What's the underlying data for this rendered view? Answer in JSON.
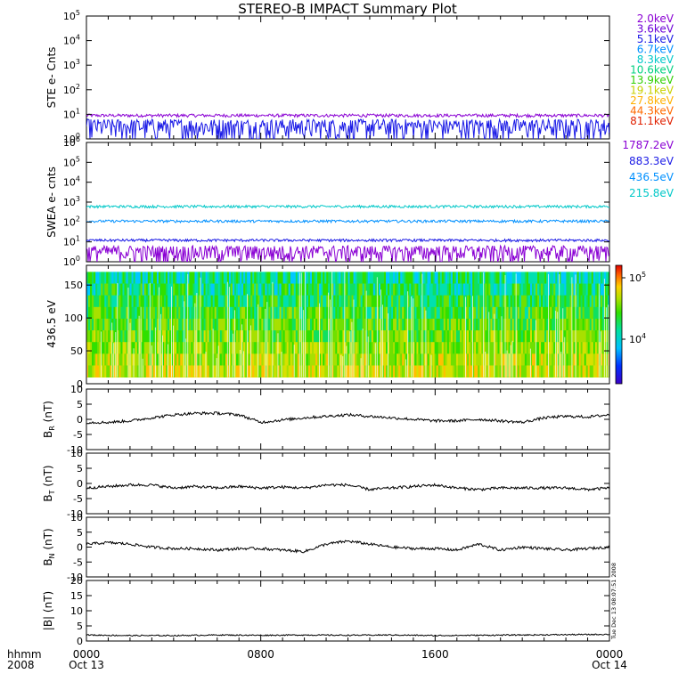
{
  "title": "STEREO-B IMPACT Summary Plot",
  "time_axis": {
    "corner_label_1": "hhmm",
    "corner_label_2": "2008",
    "ticks": [
      {
        "label": "0000",
        "sublabel": "Oct 13",
        "hour": 0
      },
      {
        "label": "0800",
        "sublabel": "",
        "hour": 8
      },
      {
        "label": "1600",
        "sublabel": "",
        "hour": 16
      },
      {
        "label": "0000",
        "sublabel": "Oct 14",
        "hour": 24
      }
    ],
    "range_hours": [
      0,
      24
    ]
  },
  "side_stamp": "Tue Dec 13 08:07:51 2008",
  "colors": {
    "ste_2.0keV": "#8a00d4",
    "ste_3.6keV": "#6a00d8",
    "ste_5.1keV": "#1a1ae6",
    "ste_6.7keV": "#0090ff",
    "ste_8.3keV": "#00c8c8",
    "ste_10.6keV": "#00d080",
    "ste_13.9keV": "#30d000",
    "ste_19.1keV": "#c8d000",
    "ste_27.8keV": "#ffb000",
    "ste_44.3keV": "#ff6a00",
    "ste_81.1keV": "#e02000",
    "swea_1787.2eV": "#8a00d4",
    "swea_883.3eV": "#1a1ae6",
    "swea_436.5eV": "#0090ff",
    "swea_215.8eV": "#00c8c8"
  },
  "ste_legend": [
    "2.0keV",
    "3.6keV",
    "5.1keV",
    "6.7keV",
    "8.3keV",
    "10.6keV",
    "13.9keV",
    "19.1keV",
    "27.8keV",
    "44.3keV",
    "81.1keV"
  ],
  "swea_legend": [
    "1787.2eV",
    "883.3eV",
    "436.5eV",
    "215.8eV"
  ],
  "chart_data": [
    {
      "type": "line",
      "panel": "ste",
      "ylabel": "STE e- Cnts",
      "yscale": "log",
      "ylim": [
        1,
        100000
      ],
      "yticks": [
        "10^0",
        "10^1",
        "10^2",
        "10^3",
        "10^4",
        "10^5"
      ],
      "series": [
        {
          "name": "2.0keV",
          "approx_level": 9
        },
        {
          "name": "5.1keV",
          "approx_level": 1.2
        }
      ]
    },
    {
      "type": "line",
      "panel": "swea",
      "ylabel": "SWEA e- cnts",
      "yscale": "log",
      "ylim": [
        1,
        1000000
      ],
      "yticks": [
        "10^0",
        "10^1",
        "10^2",
        "10^3",
        "10^4",
        "10^5",
        "10^6"
      ],
      "series": [
        {
          "name": "215.8eV",
          "approx_level": 600
        },
        {
          "name": "436.5eV",
          "approx_level": 110
        },
        {
          "name": "883.3eV",
          "approx_level": 12
        },
        {
          "name": "1787.2eV",
          "approx_level": 2
        }
      ]
    },
    {
      "type": "heatmap",
      "panel": "pad",
      "ylabel": "436.5 eV",
      "ylim": [
        0,
        180
      ],
      "yticks": [
        "0",
        "50",
        "100",
        "150"
      ],
      "colorbar": {
        "scale": "log",
        "ticks": [
          "10^5",
          "10^4"
        ]
      }
    },
    {
      "type": "line",
      "panel": "br",
      "ylabel": "B_R (nT)",
      "ylabel_main": "B",
      "ylabel_sub": "R",
      "ylabel_unit": " (nT)",
      "ylim": [
        -10,
        10
      ],
      "yticks": [
        "-10",
        "-5",
        "0",
        "5",
        "10"
      ],
      "x": [
        0,
        1,
        2,
        3,
        4,
        5,
        6,
        7,
        8,
        9,
        10,
        11,
        12,
        13,
        14,
        15,
        16,
        17,
        18,
        19,
        20,
        21,
        22,
        23,
        24
      ],
      "values": [
        -1,
        -1,
        -0.5,
        0.5,
        1.5,
        2,
        2,
        1.5,
        -1,
        -0.2,
        0.5,
        1,
        1.5,
        1,
        0.5,
        0,
        -0.5,
        -0.5,
        0,
        -0.5,
        -1,
        0.5,
        1,
        0.8,
        1.5
      ]
    },
    {
      "type": "line",
      "panel": "bt",
      "ylabel": "B_T (nT)",
      "ylabel_main": "B",
      "ylabel_sub": "T",
      "ylabel_unit": " (nT)",
      "ylim": [
        -10,
        10
      ],
      "yticks": [
        "-10",
        "-5",
        "0",
        "5",
        "10"
      ],
      "x": [
        0,
        1,
        2,
        3,
        4,
        5,
        6,
        7,
        8,
        9,
        10,
        11,
        12,
        13,
        14,
        15,
        16,
        17,
        18,
        19,
        20,
        21,
        22,
        23,
        24
      ],
      "values": [
        -1.5,
        -1,
        -0.5,
        -0.5,
        -1.5,
        -1,
        -1.5,
        -1,
        -1.5,
        -1.2,
        -1.5,
        -0.5,
        -0.5,
        -2,
        -1.5,
        -1,
        -0.5,
        -1.5,
        -2,
        -1.5,
        -1.5,
        -1.5,
        -1.5,
        -2,
        -1.5
      ]
    },
    {
      "type": "line",
      "panel": "bn",
      "ylabel": "B_N (nT)",
      "ylabel_main": "B",
      "ylabel_sub": "N",
      "ylabel_unit": " (nT)",
      "ylim": [
        -10,
        10
      ],
      "yticks": [
        "-10",
        "-5",
        "0",
        "5",
        "10"
      ],
      "x": [
        0,
        1,
        2,
        3,
        4,
        5,
        6,
        7,
        8,
        9,
        10,
        11,
        12,
        13,
        14,
        15,
        16,
        17,
        18,
        19,
        20,
        21,
        22,
        23,
        24
      ],
      "values": [
        1,
        1.5,
        1,
        0,
        -0.5,
        -0.5,
        -1,
        -0.5,
        -0.5,
        -1,
        -1.5,
        1,
        2,
        1,
        0,
        -0.5,
        -0.5,
        -1,
        1,
        -1,
        0,
        -0.5,
        -1,
        -0.5,
        0
      ]
    },
    {
      "type": "line",
      "panel": "bmag",
      "ylabel": "|B| (nT)",
      "ylim": [
        0,
        20
      ],
      "yticks": [
        "0",
        "5",
        "10",
        "15",
        "20"
      ],
      "x": [
        0,
        2,
        4,
        6,
        8,
        10,
        12,
        14,
        16,
        18,
        20,
        22,
        24
      ],
      "values": [
        2,
        1.8,
        1.8,
        2,
        1.9,
        2,
        1.9,
        2,
        1.8,
        1.9,
        2,
        2.1,
        2.2
      ]
    }
  ]
}
